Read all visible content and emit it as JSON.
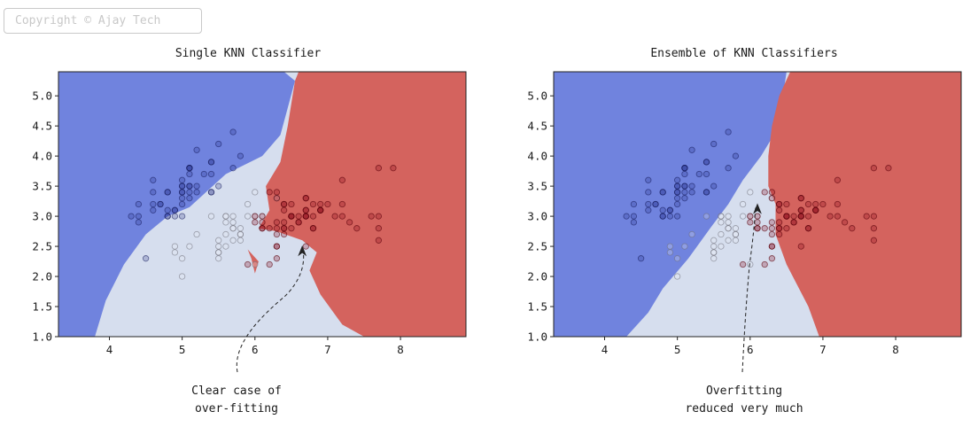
{
  "watermark": "Copyright © Ajay Tech",
  "colors": {
    "blue_region": "#7083de",
    "red_region": "#d4635e",
    "light_region": "#d6deee"
  },
  "chart_data": [
    {
      "type": "scatter",
      "title": "Single KNN Classifier",
      "xlabel": "",
      "ylabel": "",
      "xlim": [
        3.3,
        8.9
      ],
      "ylim": [
        1.0,
        5.4
      ],
      "xticks": [
        4,
        5,
        6,
        7,
        8
      ],
      "yticks": [
        1.0,
        1.5,
        2.0,
        2.5,
        3.0,
        3.5,
        4.0,
        4.5,
        5.0
      ],
      "xtick_labels": [
        "4",
        "5",
        "6",
        "7",
        "8"
      ],
      "ytick_labels": [
        "1.0",
        "1.5",
        "2.0",
        "2.5",
        "3.0",
        "3.5",
        "4.0",
        "4.5",
        "5.0"
      ],
      "grid": false,
      "regions": [
        {
          "class": "blue",
          "color": "#7083de",
          "polygon": [
            [
              3.3,
              5.4
            ],
            [
              4.5,
              5.4
            ],
            [
              5.0,
              5.4
            ],
            [
              6.0,
              5.4
            ],
            [
              6.4,
              5.4
            ],
            [
              6.55,
              5.25
            ],
            [
              6.45,
              4.8
            ],
            [
              6.35,
              4.35
            ],
            [
              6.1,
              4.0
            ],
            [
              5.6,
              3.7
            ],
            [
              5.1,
              3.15
            ],
            [
              4.8,
              3.0
            ],
            [
              4.5,
              2.7
            ],
            [
              4.2,
              2.2
            ],
            [
              3.95,
              1.6
            ],
            [
              3.8,
              1.0
            ],
            [
              3.3,
              1.0
            ]
          ]
        },
        {
          "class": "red",
          "color": "#d4635e",
          "polygon": [
            [
              6.6,
              5.4
            ],
            [
              8.9,
              5.4
            ],
            [
              8.9,
              1.0
            ],
            [
              7.5,
              1.0
            ],
            [
              7.2,
              1.2
            ],
            [
              6.9,
              1.7
            ],
            [
              6.75,
              2.1
            ],
            [
              6.85,
              2.4
            ],
            [
              6.65,
              2.6
            ],
            [
              6.3,
              2.75
            ],
            [
              6.05,
              2.8
            ],
            [
              6.2,
              3.1
            ],
            [
              6.15,
              3.5
            ],
            [
              6.35,
              3.9
            ],
            [
              6.45,
              4.5
            ],
            [
              6.55,
              5.25
            ]
          ]
        },
        {
          "class": "red",
          "color": "#d4635e",
          "polygon": [
            [
              5.9,
              2.45
            ],
            [
              6.05,
              2.25
            ],
            [
              6.0,
              2.05
            ],
            [
              5.95,
              2.3
            ]
          ]
        }
      ],
      "points": {
        "blue": [
          [
            5.1,
            3.5
          ],
          [
            4.9,
            3.0
          ],
          [
            4.7,
            3.2
          ],
          [
            4.6,
            3.1
          ],
          [
            5.0,
            3.6
          ],
          [
            5.4,
            3.9
          ],
          [
            4.6,
            3.4
          ],
          [
            5.0,
            3.4
          ],
          [
            4.4,
            2.9
          ],
          [
            4.9,
            3.1
          ],
          [
            5.4,
            3.7
          ],
          [
            4.8,
            3.4
          ],
          [
            4.8,
            3.0
          ],
          [
            4.3,
            3.0
          ],
          [
            5.8,
            4.0
          ],
          [
            5.7,
            4.4
          ],
          [
            5.4,
            3.9
          ],
          [
            5.1,
            3.5
          ],
          [
            5.7,
            3.8
          ],
          [
            5.1,
            3.8
          ],
          [
            5.4,
            3.4
          ],
          [
            5.1,
            3.7
          ],
          [
            4.6,
            3.6
          ],
          [
            5.1,
            3.3
          ],
          [
            4.8,
            3.4
          ],
          [
            5.0,
            3.0
          ],
          [
            5.0,
            3.4
          ],
          [
            5.2,
            3.5
          ],
          [
            5.2,
            3.4
          ],
          [
            4.7,
            3.2
          ],
          [
            4.8,
            3.1
          ],
          [
            5.4,
            3.4
          ],
          [
            5.2,
            4.1
          ],
          [
            5.5,
            4.2
          ],
          [
            4.9,
            3.1
          ],
          [
            5.0,
            3.2
          ],
          [
            5.5,
            3.5
          ],
          [
            4.4,
            3.0
          ],
          [
            5.1,
            3.4
          ],
          [
            5.0,
            3.5
          ],
          [
            4.5,
            2.3
          ],
          [
            4.4,
            3.2
          ],
          [
            5.0,
            3.5
          ],
          [
            5.1,
            3.8
          ],
          [
            4.8,
            3.0
          ],
          [
            5.1,
            3.8
          ],
          [
            4.6,
            3.2
          ],
          [
            5.3,
            3.7
          ],
          [
            5.0,
            3.3
          ]
        ],
        "light": [
          [
            5.5,
            2.3
          ],
          [
            5.7,
            2.8
          ],
          [
            4.9,
            2.4
          ],
          [
            5.2,
            2.7
          ],
          [
            5.0,
            2.0
          ],
          [
            5.9,
            3.0
          ],
          [
            6.0,
            2.2
          ],
          [
            5.6,
            2.9
          ],
          [
            5.6,
            3.0
          ],
          [
            5.8,
            2.7
          ],
          [
            5.6,
            2.5
          ],
          [
            5.9,
            3.2
          ],
          [
            5.7,
            2.6
          ],
          [
            5.5,
            2.4
          ],
          [
            5.5,
            2.4
          ],
          [
            5.8,
            2.7
          ],
          [
            5.4,
            3.0
          ],
          [
            6.0,
            3.4
          ],
          [
            5.6,
            3.0
          ],
          [
            5.5,
            2.5
          ],
          [
            5.5,
            2.6
          ],
          [
            5.8,
            2.6
          ],
          [
            5.0,
            2.3
          ],
          [
            5.6,
            2.7
          ],
          [
            5.7,
            3.0
          ],
          [
            5.7,
            2.9
          ],
          [
            5.1,
            2.5
          ],
          [
            5.7,
            2.8
          ],
          [
            4.9,
            2.5
          ],
          [
            5.8,
            2.8
          ],
          [
            6.0,
            3.0
          ],
          [
            6.1,
            3.0
          ],
          [
            6.3,
            3.3
          ]
        ],
        "red": [
          [
            6.3,
            2.9
          ],
          [
            6.5,
            3.0
          ],
          [
            7.6,
            3.0
          ],
          [
            7.3,
            2.9
          ],
          [
            6.7,
            2.5
          ],
          [
            7.2,
            3.6
          ],
          [
            6.5,
            3.2
          ],
          [
            6.4,
            2.7
          ],
          [
            6.8,
            3.0
          ],
          [
            6.4,
            3.2
          ],
          [
            6.5,
            3.0
          ],
          [
            7.7,
            3.8
          ],
          [
            7.7,
            2.6
          ],
          [
            6.9,
            3.2
          ],
          [
            7.7,
            2.8
          ],
          [
            6.3,
            2.7
          ],
          [
            6.7,
            3.3
          ],
          [
            7.2,
            3.2
          ],
          [
            6.2,
            2.8
          ],
          [
            6.1,
            3.0
          ],
          [
            6.4,
            2.8
          ],
          [
            7.2,
            3.0
          ],
          [
            7.4,
            2.8
          ],
          [
            7.9,
            3.8
          ],
          [
            6.4,
            2.8
          ],
          [
            6.3,
            2.8
          ],
          [
            7.7,
            3.0
          ],
          [
            6.3,
            3.4
          ],
          [
            6.4,
            3.1
          ],
          [
            6.0,
            3.0
          ],
          [
            6.9,
            3.1
          ],
          [
            6.7,
            3.1
          ],
          [
            6.9,
            3.1
          ],
          [
            6.8,
            3.2
          ],
          [
            6.7,
            3.3
          ],
          [
            6.7,
            3.0
          ],
          [
            6.3,
            2.5
          ],
          [
            6.5,
            3.0
          ],
          [
            6.2,
            3.4
          ],
          [
            6.6,
            3.0
          ],
          [
            6.8,
            2.8
          ],
          [
            6.7,
            3.0
          ],
          [
            6.0,
            2.9
          ],
          [
            6.1,
            2.8
          ],
          [
            6.3,
            2.5
          ],
          [
            6.1,
            2.8
          ],
          [
            6.4,
            2.9
          ],
          [
            6.6,
            2.9
          ],
          [
            6.8,
            2.8
          ],
          [
            6.7,
            3.0
          ],
          [
            7.0,
            3.2
          ],
          [
            6.4,
            3.2
          ],
          [
            6.9,
            3.1
          ],
          [
            6.5,
            2.8
          ],
          [
            6.3,
            3.3
          ],
          [
            6.6,
            2.9
          ],
          [
            6.3,
            2.3
          ],
          [
            6.7,
            3.1
          ],
          [
            6.1,
            2.9
          ],
          [
            7.1,
            3.0
          ],
          [
            6.2,
            2.2
          ],
          [
            5.9,
            2.2
          ]
        ]
      },
      "annotation": {
        "text_lines": [
          "Clear case of",
          "over-fitting"
        ],
        "xy": [
          6.65,
          2.5
        ]
      }
    },
    {
      "type": "scatter",
      "title": "Ensemble of KNN Classifiers",
      "xlabel": "",
      "ylabel": "",
      "xlim": [
        3.3,
        8.9
      ],
      "ylim": [
        1.0,
        5.4
      ],
      "xticks": [
        4,
        5,
        6,
        7,
        8
      ],
      "yticks": [
        1.0,
        1.5,
        2.0,
        2.5,
        3.0,
        3.5,
        4.0,
        4.5,
        5.0
      ],
      "xtick_labels": [
        "4",
        "5",
        "6",
        "7",
        "8"
      ],
      "ytick_labels": [
        "1.0",
        "1.5",
        "2.0",
        "2.5",
        "3.0",
        "3.5",
        "4.0",
        "4.5",
        "5.0"
      ],
      "grid": false,
      "regions": [
        {
          "class": "blue",
          "color": "#7083de",
          "polygon": [
            [
              3.3,
              5.4
            ],
            [
              6.5,
              5.4
            ],
            [
              6.45,
              5.0
            ],
            [
              6.35,
              4.6
            ],
            [
              6.3,
              4.3
            ],
            [
              6.15,
              4.0
            ],
            [
              5.9,
              3.6
            ],
            [
              5.7,
              3.2
            ],
            [
              5.45,
              2.8
            ],
            [
              5.15,
              2.3
            ],
            [
              4.8,
              1.8
            ],
            [
              4.6,
              1.4
            ],
            [
              4.3,
              1.0
            ],
            [
              3.3,
              1.0
            ]
          ]
        },
        {
          "class": "red",
          "color": "#d4635e",
          "polygon": [
            [
              6.55,
              5.4
            ],
            [
              8.9,
              5.4
            ],
            [
              8.9,
              1.0
            ],
            [
              6.95,
              1.0
            ],
            [
              6.8,
              1.5
            ],
            [
              6.5,
              2.2
            ],
            [
              6.35,
              2.7
            ],
            [
              6.35,
              3.2
            ],
            [
              6.25,
              3.5
            ],
            [
              6.25,
              4.0
            ],
            [
              6.3,
              4.5
            ],
            [
              6.4,
              5.0
            ]
          ]
        }
      ],
      "points": "same_as_first",
      "annotation": {
        "text_lines": [
          "Overfitting",
          "reduced very much"
        ],
        "xy": [
          6.1,
          3.2
        ]
      }
    }
  ]
}
